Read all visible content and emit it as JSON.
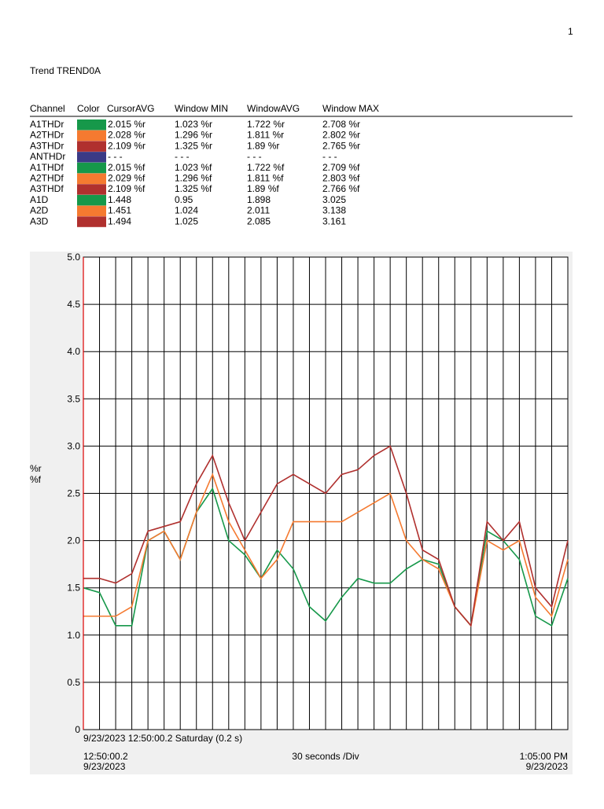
{
  "page_number": "1",
  "title": "Trend TREND0A",
  "table": {
    "header": [
      "Channel",
      "Color",
      "CursorAVG",
      "Window MIN",
      "WindowAVG",
      "Window MAX"
    ],
    "rows": [
      [
        "A1THDr",
        "#16984a",
        "2.015 %r",
        "1.023 %r",
        "1.722 %r",
        "2.708 %r"
      ],
      [
        "A2THDr",
        "#f57a30",
        "2.028 %r",
        "1.296 %r",
        "1.811 %r",
        "2.802 %r"
      ],
      [
        "A3THDr",
        "#b0302e",
        "2.109 %r",
        "1.325 %r",
        "1.89 %r",
        "2.765 %r"
      ],
      [
        "ANTHDr",
        "#3b3a86",
        "- - -",
        "- - -",
        "- - -",
        "- - -"
      ],
      [
        "A1THDf",
        "#16984a",
        "2.015 %f",
        "1.023 %f",
        "1.722 %f",
        "2.709 %f"
      ],
      [
        "A2THDf",
        "#f57a30",
        "2.029 %f",
        "1.296 %f",
        "1.811 %f",
        "2.803 %f"
      ],
      [
        "A3THDf",
        "#b0302e",
        "2.109 %f",
        "1.325 %f",
        "1.89 %f",
        "2.766 %f"
      ],
      [
        "A1D",
        "#16984a",
        "1.448",
        "0.95",
        "1.898",
        "3.025"
      ],
      [
        "A2D",
        "#f57a30",
        "1.451",
        "1.024",
        "2.011",
        "3.138"
      ],
      [
        "A3D",
        "#b0302e",
        "1.494",
        "1.025",
        "2.085",
        "3.161"
      ]
    ]
  },
  "chart_data": {
    "type": "line",
    "y_label": [
      "%r",
      "%f"
    ],
    "ylim": [
      0,
      5
    ],
    "yticks": [
      0,
      0.5,
      {
        "value": 1,
        "label": "1.0"
      },
      1.5,
      {
        "value": 2,
        "label": "2.0"
      },
      2.5,
      {
        "value": 3,
        "label": "3.0"
      },
      3.5,
      {
        "value": 4,
        "label": "4.0"
      },
      4.5,
      {
        "value": 5,
        "label": "5.0"
      }
    ],
    "cursor_label": "9/23/2023 12:50:00.2 Saturday (0.2 s)",
    "x_start_label": [
      "12:50:00.2",
      "9/23/2023"
    ],
    "x_end_label": [
      "1:05:00 PM",
      "9/23/2023"
    ],
    "x_div_label": "30 seconds /Div",
    "series": [
      {
        "color": "#16984a",
        "values": [
          1.5,
          1.45,
          1.1,
          1.1,
          2.0,
          2.1,
          1.8,
          2.3,
          2.55,
          2.0,
          1.85,
          1.6,
          1.9,
          1.7,
          1.3,
          1.15,
          1.4,
          1.6,
          1.55,
          1.55,
          1.7,
          1.8,
          1.75,
          1.3,
          1.1,
          2.1,
          2.0,
          1.8,
          1.2,
          1.1,
          1.6
        ]
      },
      {
        "color": "#f57a30",
        "values": [
          1.2,
          1.2,
          1.2,
          1.3,
          2.0,
          2.1,
          1.8,
          2.3,
          2.7,
          2.2,
          1.9,
          1.6,
          1.8,
          2.2,
          2.2,
          2.2,
          2.2,
          2.3,
          2.4,
          2.5,
          2.0,
          1.8,
          1.7,
          1.3,
          1.1,
          2.0,
          1.9,
          2.0,
          1.4,
          1.2,
          1.8
        ]
      },
      {
        "color": "#b0302e",
        "values": [
          1.6,
          1.6,
          1.55,
          1.65,
          2.1,
          2.15,
          2.2,
          2.6,
          2.9,
          2.4,
          2.0,
          2.3,
          2.6,
          2.7,
          2.6,
          2.5,
          2.7,
          2.75,
          2.9,
          3.0,
          2.5,
          1.9,
          1.8,
          1.3,
          1.1,
          2.2,
          2.0,
          2.2,
          1.5,
          1.3,
          2.0
        ]
      }
    ]
  }
}
